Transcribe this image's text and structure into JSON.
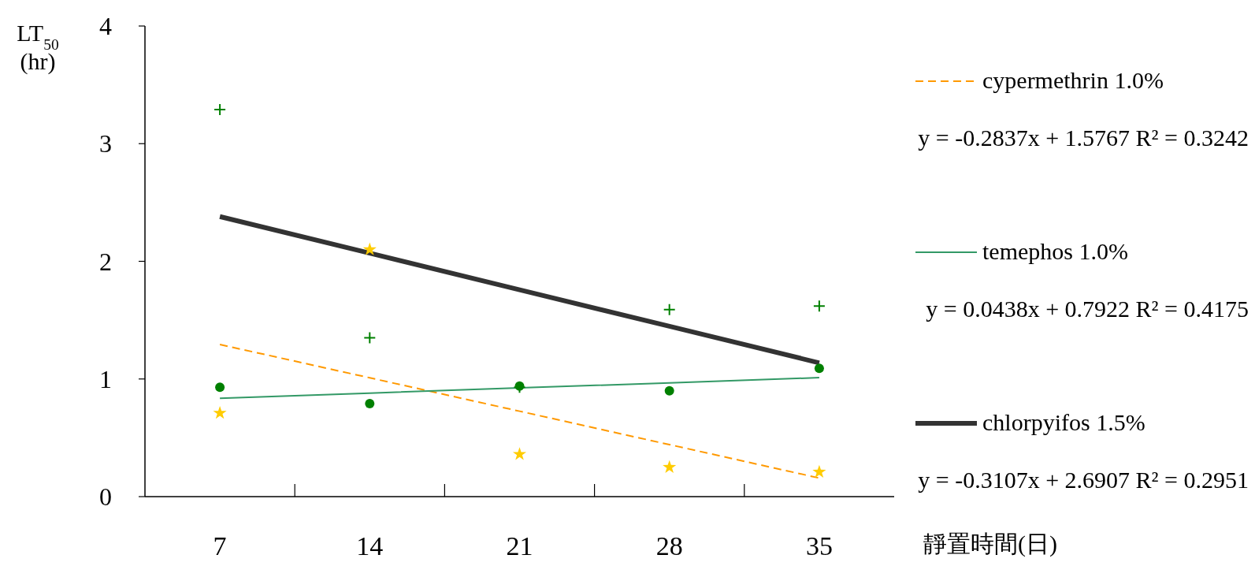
{
  "chart_data": {
    "type": "scatter",
    "ylabel": "LT$_{50}$\n(hr)",
    "xlabel": "靜置時間(日)",
    "categories": [
      "7",
      "14",
      "21",
      "28",
      "35"
    ],
    "ylim": [
      0,
      4
    ],
    "yticks": [
      0,
      1,
      2,
      3,
      4
    ],
    "grid": false,
    "legend": "right",
    "series": [
      {
        "type": "scatter",
        "marker": "cross",
        "color": "#008000",
        "values": [
          3.29,
          1.35,
          0.93,
          1.59,
          1.62
        ]
      },
      {
        "type": "scatter",
        "marker": "circle",
        "color": "#008000",
        "values": [
          0.93,
          0.79,
          0.94,
          0.9,
          1.09
        ]
      },
      {
        "type": "scatter",
        "marker": "star",
        "color": "#ffcc00",
        "values": [
          0.71,
          2.1,
          0.36,
          0.25,
          0.21
        ]
      },
      {
        "type": "line",
        "name": "cypermethrin 1.0%",
        "color": "#ff9900",
        "line_style": "dashed",
        "marker": "none",
        "values": [
          1.293,
          1.01,
          0.726,
          0.442,
          0.158
        ]
      },
      {
        "type": "line",
        "name": "temephos 1.0%",
        "color": "#339966",
        "line_style": "solid",
        "marker": "none",
        "values": [
          0.836,
          0.88,
          0.924,
          0.967,
          1.011
        ]
      },
      {
        "type": "line",
        "name": "chlorpyifos 1.5%",
        "color": "#333333",
        "line_style": "solid",
        "marker": "none",
        "values": [
          2.38,
          2.069,
          1.758,
          1.448,
          1.137
        ]
      }
    ],
    "annotations": [
      "y = -0.2837x + 1.5767  R² = 0.3242",
      "y = 0.0438x + 0.7922   R² = 0.4175",
      "y = -0.3107x + 2.6907  R² = 0.2951"
    ]
  }
}
